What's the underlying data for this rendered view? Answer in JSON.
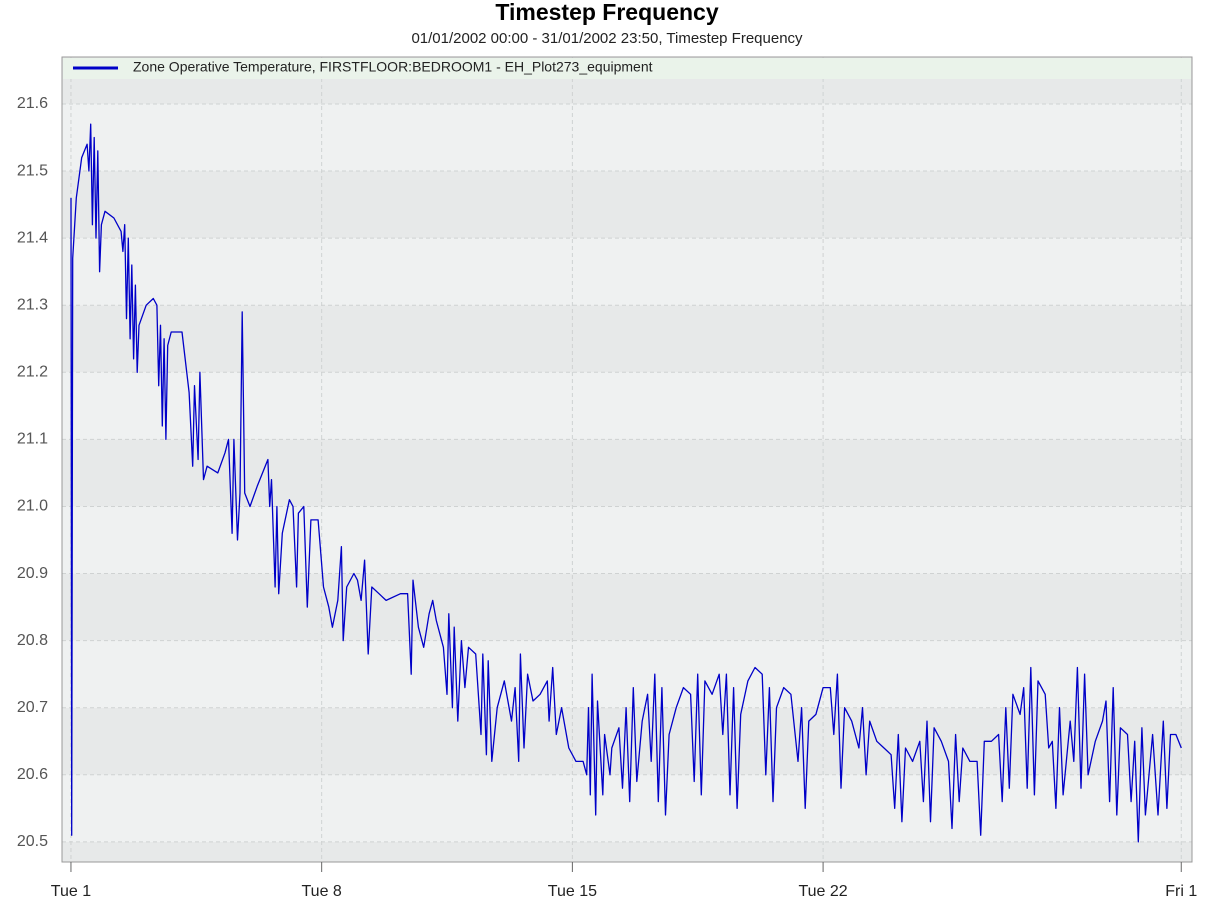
{
  "chart_data": {
    "type": "line",
    "title": "Timestep Frequency",
    "subtitle": "01/01/2002 00:00 - 31/01/2002 23:50, Timestep Frequency",
    "xlim": [
      -0.25,
      31.3
    ],
    "ylim": [
      20.47,
      21.67
    ],
    "xticks": [
      {
        "value": 0,
        "label": "Tue 1"
      },
      {
        "value": 7,
        "label": "Tue 8"
      },
      {
        "value": 14,
        "label": "Tue 15"
      },
      {
        "value": 21,
        "label": "Tue 22"
      },
      {
        "value": 31,
        "label": "Fri 1"
      }
    ],
    "yticks": [
      {
        "value": 20.5,
        "label": "20.5"
      },
      {
        "value": 20.6,
        "label": "20.6"
      },
      {
        "value": 20.7,
        "label": "20.7"
      },
      {
        "value": 20.8,
        "label": "20.8"
      },
      {
        "value": 20.9,
        "label": "20.9"
      },
      {
        "value": 21.0,
        "label": "21.0"
      },
      {
        "value": 21.1,
        "label": "21.1"
      },
      {
        "value": 21.2,
        "label": "21.2"
      },
      {
        "value": 21.3,
        "label": "21.3"
      },
      {
        "value": 21.4,
        "label": "21.4"
      },
      {
        "value": 21.5,
        "label": "21.5"
      },
      {
        "value": 21.6,
        "label": "21.6"
      }
    ],
    "grid": true,
    "legend": "top",
    "x": [
      0,
      0.02,
      0.05,
      0.15,
      0.3,
      0.45,
      0.5,
      0.55,
      0.6,
      0.65,
      0.7,
      0.75,
      0.8,
      0.85,
      0.95,
      1.2,
      1.4,
      1.45,
      1.5,
      1.55,
      1.6,
      1.65,
      1.7,
      1.75,
      1.8,
      1.85,
      1.9,
      2.1,
      2.3,
      2.4,
      2.45,
      2.5,
      2.55,
      2.6,
      2.65,
      2.7,
      2.8,
      3.1,
      3.3,
      3.4,
      3.45,
      3.55,
      3.6,
      3.7,
      3.8,
      4.1,
      4.3,
      4.4,
      4.5,
      4.55,
      4.65,
      4.72,
      4.78,
      4.85,
      5.0,
      5.2,
      5.5,
      5.55,
      5.6,
      5.7,
      5.75,
      5.8,
      5.9,
      6.1,
      6.2,
      6.3,
      6.35,
      6.5,
      6.6,
      6.7,
      6.9,
      7.05,
      7.2,
      7.3,
      7.45,
      7.55,
      7.6,
      7.7,
      7.9,
      8.0,
      8.1,
      8.2,
      8.3,
      8.4,
      8.6,
      8.8,
      9.2,
      9.4,
      9.5,
      9.55,
      9.7,
      9.85,
      10.0,
      10.1,
      10.2,
      10.4,
      10.5,
      10.55,
      10.65,
      10.7,
      10.8,
      10.9,
      11.0,
      11.1,
      11.3,
      11.45,
      11.5,
      11.6,
      11.65,
      11.75,
      11.9,
      12.1,
      12.3,
      12.4,
      12.5,
      12.55,
      12.65,
      12.75,
      12.9,
      13.1,
      13.3,
      13.35,
      13.45,
      13.55,
      13.7,
      13.9,
      14.1,
      14.3,
      14.4,
      14.45,
      14.5,
      14.55,
      14.65,
      14.7,
      14.85,
      14.9,
      15.05,
      15.1,
      15.3,
      15.4,
      15.5,
      15.6,
      15.7,
      15.8,
      15.95,
      16.1,
      16.2,
      16.3,
      16.4,
      16.5,
      16.6,
      16.7,
      16.9,
      17.1,
      17.3,
      17.4,
      17.5,
      17.6,
      17.7,
      17.9,
      18.1,
      18.2,
      18.3,
      18.4,
      18.5,
      18.6,
      18.7,
      18.9,
      19.1,
      19.3,
      19.4,
      19.5,
      19.6,
      19.7,
      19.9,
      20.1,
      20.3,
      20.4,
      20.5,
      20.6,
      20.8,
      21.0,
      21.2,
      21.3,
      21.4,
      21.5,
      21.6,
      21.8,
      22.0,
      22.1,
      22.2,
      22.3,
      22.5,
      22.7,
      22.9,
      23.0,
      23.1,
      23.2,
      23.3,
      23.5,
      23.7,
      23.8,
      23.9,
      24.0,
      24.1,
      24.3,
      24.5,
      24.6,
      24.7,
      24.8,
      24.9,
      25.1,
      25.3,
      25.4,
      25.5,
      25.7,
      25.9,
      26.0,
      26.1,
      26.2,
      26.3,
      26.5,
      26.6,
      26.7,
      26.8,
      26.9,
      27.0,
      27.2,
      27.3,
      27.4,
      27.5,
      27.6,
      27.7,
      27.9,
      28.0,
      28.1,
      28.2,
      28.3,
      28.4,
      28.6,
      28.8,
      28.9,
      29.0,
      29.1,
      29.2,
      29.3,
      29.5,
      29.6,
      29.7,
      29.8,
      29.9,
      30.0,
      30.2,
      30.35,
      30.5,
      30.6,
      30.7,
      30.85,
      31.0
    ],
    "series": [
      {
        "name": "Zone Operative Temperature, FIRSTFLOOR:BEDROOM1 - EH_Plot273_equipment",
        "color": "#0000c8",
        "values": [
          21.46,
          20.51,
          21.37,
          21.46,
          21.52,
          21.54,
          21.5,
          21.57,
          21.42,
          21.55,
          21.4,
          21.53,
          21.35,
          21.42,
          21.44,
          21.43,
          21.41,
          21.38,
          21.42,
          21.28,
          21.4,
          21.25,
          21.36,
          21.22,
          21.33,
          21.2,
          21.27,
          21.3,
          21.31,
          21.3,
          21.18,
          21.27,
          21.12,
          21.25,
          21.1,
          21.24,
          21.26,
          21.26,
          21.17,
          21.06,
          21.18,
          21.07,
          21.2,
          21.04,
          21.06,
          21.05,
          21.08,
          21.1,
          20.96,
          21.1,
          20.95,
          21.02,
          21.29,
          21.02,
          21.0,
          21.03,
          21.07,
          21.0,
          21.04,
          20.88,
          21.0,
          20.87,
          20.96,
          21.01,
          21.0,
          20.88,
          20.99,
          21.0,
          20.85,
          20.98,
          20.98,
          20.88,
          20.85,
          20.82,
          20.86,
          20.94,
          20.8,
          20.88,
          20.9,
          20.89,
          20.86,
          20.92,
          20.78,
          20.88,
          20.87,
          20.86,
          20.87,
          20.87,
          20.75,
          20.89,
          20.82,
          20.79,
          20.84,
          20.86,
          20.83,
          20.79,
          20.72,
          20.84,
          20.7,
          20.82,
          20.68,
          20.8,
          20.73,
          20.79,
          20.78,
          20.66,
          20.78,
          20.63,
          20.77,
          20.62,
          20.7,
          20.74,
          20.68,
          20.73,
          20.62,
          20.78,
          20.64,
          20.75,
          20.71,
          20.72,
          20.74,
          20.68,
          20.76,
          20.66,
          20.7,
          20.64,
          20.62,
          20.62,
          20.6,
          20.7,
          20.57,
          20.75,
          20.54,
          20.71,
          20.57,
          20.66,
          20.6,
          20.64,
          20.67,
          20.58,
          20.7,
          20.56,
          20.73,
          20.59,
          20.68,
          20.72,
          20.62,
          20.75,
          20.56,
          20.73,
          20.54,
          20.66,
          20.7,
          20.73,
          20.72,
          20.59,
          20.75,
          20.57,
          20.74,
          20.72,
          20.75,
          20.66,
          20.75,
          20.57,
          20.73,
          20.55,
          20.69,
          20.74,
          20.76,
          20.75,
          20.6,
          20.73,
          20.56,
          20.7,
          20.73,
          20.72,
          20.62,
          20.7,
          20.55,
          20.68,
          20.69,
          20.73,
          20.73,
          20.66,
          20.75,
          20.58,
          20.7,
          20.68,
          20.64,
          20.7,
          20.6,
          20.68,
          20.65,
          20.64,
          20.63,
          20.55,
          20.66,
          20.53,
          20.64,
          20.62,
          20.65,
          20.56,
          20.68,
          20.53,
          20.67,
          20.65,
          20.62,
          20.52,
          20.66,
          20.56,
          20.64,
          20.62,
          20.62,
          20.51,
          20.65,
          20.65,
          20.66,
          20.56,
          20.7,
          20.58,
          20.72,
          20.69,
          20.73,
          20.58,
          20.76,
          20.57,
          20.74,
          20.72,
          20.64,
          20.65,
          20.55,
          20.7,
          20.57,
          20.68,
          20.62,
          20.76,
          20.58,
          20.75,
          20.6,
          20.65,
          20.68,
          20.71,
          20.56,
          20.73,
          20.54,
          20.67,
          20.66,
          20.56,
          20.65,
          20.5,
          20.67,
          20.54,
          20.66,
          20.54,
          20.68,
          20.55,
          20.66,
          20.66,
          20.64
        ]
      }
    ]
  }
}
